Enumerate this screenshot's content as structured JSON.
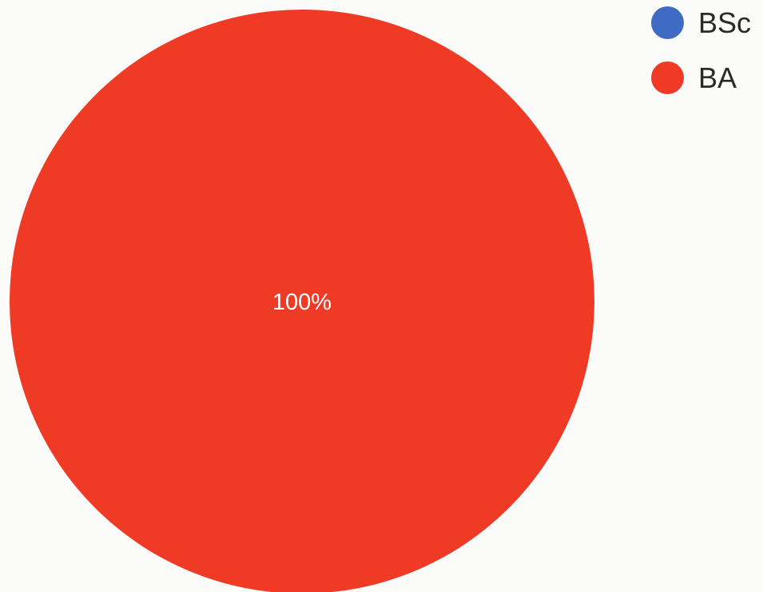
{
  "chart_data": {
    "type": "pie",
    "slices": [
      {
        "name": "BSc",
        "value": 0,
        "color": "#3f6bc4"
      },
      {
        "name": "BA",
        "value": 100,
        "color": "#ef3a26"
      }
    ],
    "labels": [
      "100%"
    ],
    "legend_position": "top-right"
  }
}
